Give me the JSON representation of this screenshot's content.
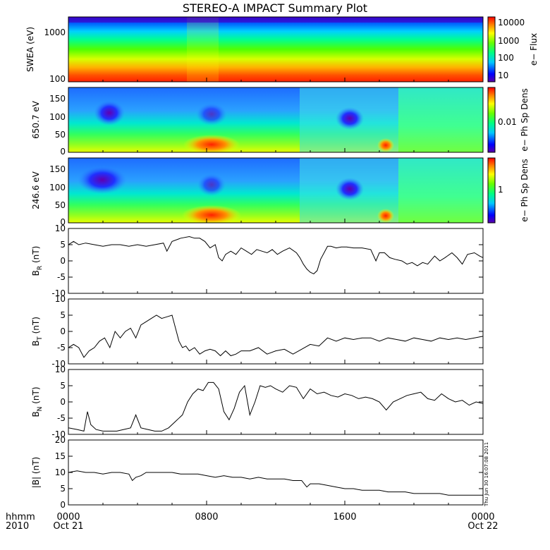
{
  "title": "STEREO-A IMPACT Summary Plot",
  "footer": {
    "hhmm_label": "hhmm",
    "year_label": "2010",
    "date_start": "Oct 21",
    "date_end": "Oct 22",
    "timestamp": "Thu Jun 30 16:07:08 2011"
  },
  "colors": {
    "trace": "#000000",
    "frame": "#000000"
  },
  "chart_data": [
    {
      "type": "heatmap",
      "ylabel": "SWEA (eV)",
      "yscale": "log",
      "ylim": [
        100,
        2000
      ],
      "yticks": [
        "1000",
        "100"
      ],
      "colorbar": {
        "label": "e− Flux",
        "scale": "log",
        "ticks": [
          "10000",
          "1000",
          "100",
          "10"
        ]
      },
      "xlim_hours": [
        0,
        24
      ],
      "xticks": [
        "0000",
        "0800",
        "1600",
        "0000"
      ]
    },
    {
      "type": "heatmap",
      "ylabel": "650.7 eV",
      "ylim": [
        0,
        180
      ],
      "yticks": [
        "150",
        "100",
        "50",
        "0"
      ],
      "colorbar": {
        "label": "e− Ph Sp Dens",
        "ticks": [
          "0.01"
        ]
      },
      "xlim_hours": [
        0,
        24
      ]
    },
    {
      "type": "heatmap",
      "ylabel": "246.6 eV",
      "ylim": [
        0,
        180
      ],
      "yticks": [
        "150",
        "100",
        "50",
        "0"
      ],
      "colorbar": {
        "label": "e− Ph Sp Dens",
        "ticks": [
          "1"
        ]
      },
      "xlim_hours": [
        0,
        24
      ]
    },
    {
      "type": "line",
      "ylabel": "B_R (nT)",
      "ylim": [
        -10,
        10
      ],
      "yticks": [
        "10",
        "5",
        "0",
        "-5",
        "-10"
      ],
      "series": [
        {
          "x": [
            0,
            0.3,
            0.6,
            1,
            1.5,
            2,
            2.5,
            3,
            3.5,
            4,
            4.5,
            5,
            5.5,
            5.7,
            6,
            6.5,
            7,
            7.3,
            7.6,
            7.9,
            8.2,
            8.5,
            8.7,
            8.9,
            9.1,
            9.4,
            9.7,
            10,
            10.3,
            10.6,
            10.9,
            11.2,
            11.5,
            11.8,
            12.1,
            12.4,
            12.8,
            13.2,
            13.4,
            13.6,
            13.8,
            14,
            14.2,
            14.4,
            14.6,
            14.8,
            15,
            15.2,
            15.5,
            15.8,
            16.1,
            16.5,
            17,
            17.5,
            17.8,
            18,
            18.3,
            18.6,
            18.9,
            19.3,
            19.6,
            19.9,
            20.2,
            20.5,
            20.8,
            21.2,
            21.5,
            21.8,
            22.2,
            22.5,
            22.8,
            23.1,
            23.5,
            23.8,
            24
          ],
          "y": [
            5,
            6,
            5,
            5.5,
            5,
            4.5,
            5,
            5,
            4.5,
            5,
            4.5,
            5,
            5.5,
            3,
            6,
            7,
            7.5,
            7,
            7,
            6,
            4,
            5,
            1,
            0,
            2,
            3,
            2,
            4,
            3,
            2,
            3.5,
            3,
            2.5,
            3.5,
            2,
            3,
            4,
            2.5,
            1,
            -1,
            -2.5,
            -3.5,
            -4,
            -3,
            0.5,
            2.5,
            4.5,
            4.5,
            4,
            4.3,
            4.3,
            4,
            4,
            3.5,
            0,
            2.5,
            2.5,
            1,
            0.5,
            0,
            -1,
            -0.5,
            -1.5,
            -0.5,
            -1,
            1.5,
            0,
            1,
            2.5,
            1,
            -1,
            2,
            2.5,
            1.5,
            1
          ]
        }
      ]
    },
    {
      "type": "line",
      "ylabel": "B_T (nT)",
      "ylim": [
        -10,
        10
      ],
      "yticks": [
        "10",
        "5",
        "0",
        "-5",
        "-10"
      ],
      "series": [
        {
          "x": [
            0,
            0.3,
            0.6,
            0.9,
            1.2,
            1.5,
            1.8,
            2.1,
            2.4,
            2.7,
            3,
            3.3,
            3.6,
            3.9,
            4.2,
            4.5,
            4.8,
            5.1,
            5.4,
            5.7,
            6,
            6.2,
            6.4,
            6.6,
            6.8,
            7,
            7.3,
            7.6,
            7.9,
            8.2,
            8.5,
            8.8,
            9.1,
            9.4,
            9.7,
            10,
            10.5,
            11,
            11.5,
            12,
            12.5,
            13,
            13.5,
            14,
            14.5,
            15,
            15.5,
            16,
            16.5,
            17,
            17.5,
            18,
            18.5,
            19,
            19.5,
            20,
            20.5,
            21,
            21.5,
            22,
            22.5,
            23,
            23.5,
            24
          ],
          "y": [
            -5,
            -4,
            -5,
            -8,
            -6,
            -5,
            -3,
            -2,
            -5,
            0,
            -2,
            0,
            1,
            -2,
            2,
            3,
            4,
            5,
            4,
            4.5,
            5,
            1,
            -3,
            -5,
            -4.5,
            -6,
            -5,
            -7,
            -6,
            -5.5,
            -6,
            -7.5,
            -6,
            -7.5,
            -7,
            -6,
            -6,
            -5,
            -7,
            -6,
            -5.5,
            -7,
            -5.5,
            -4,
            -4.5,
            -2,
            -3,
            -2,
            -2.5,
            -2,
            -2,
            -3,
            -2,
            -2.5,
            -3,
            -2,
            -2.5,
            -3,
            -2,
            -2.5,
            -2,
            -2.5,
            -2,
            -1.5
          ]
        }
      ]
    },
    {
      "type": "line",
      "ylabel": "B_N (nT)",
      "ylim": [
        -10,
        10
      ],
      "yticks": [
        "10",
        "5",
        "0",
        "-5",
        "-10"
      ],
      "series": [
        {
          "x": [
            0,
            0.5,
            0.9,
            1.1,
            1.3,
            1.6,
            2,
            2.4,
            2.8,
            3.2,
            3.6,
            3.9,
            4.2,
            4.6,
            5,
            5.4,
            5.8,
            6.2,
            6.6,
            6.9,
            7.2,
            7.5,
            7.8,
            8.1,
            8.4,
            8.7,
            9,
            9.3,
            9.6,
            9.9,
            10.2,
            10.5,
            10.8,
            11.1,
            11.4,
            11.7,
            12,
            12.4,
            12.8,
            13.2,
            13.6,
            14,
            14.4,
            14.8,
            15.2,
            15.6,
            16,
            16.4,
            16.8,
            17.2,
            17.6,
            18,
            18.4,
            18.8,
            19.2,
            19.6,
            20,
            20.4,
            20.8,
            21.2,
            21.6,
            22,
            22.4,
            22.8,
            23.2,
            23.6,
            24
          ],
          "y": [
            -8,
            -8.5,
            -9,
            -3,
            -7,
            -8.5,
            -9,
            -9,
            -9,
            -8.5,
            -8,
            -4,
            -8,
            -8.5,
            -9,
            -9,
            -8,
            -6,
            -4,
            0,
            2.5,
            4,
            3.5,
            6,
            6,
            4,
            -3,
            -5.5,
            -2,
            3,
            5,
            -4,
            0,
            5,
            4.5,
            5,
            4,
            3,
            5,
            4.5,
            1,
            4,
            2.5,
            3,
            2,
            1.5,
            2.5,
            2,
            1,
            1.5,
            1,
            0,
            -2.5,
            0,
            1,
            2,
            2.5,
            3,
            1,
            0.5,
            2.5,
            1,
            0,
            0.5,
            -1,
            0,
            -0.5
          ]
        }
      ]
    },
    {
      "type": "line",
      "ylabel": "|B| (nT)",
      "ylim": [
        0,
        20
      ],
      "yticks": [
        "20",
        "15",
        "10",
        "5",
        "0"
      ],
      "series": [
        {
          "x": [
            0,
            0.5,
            1,
            1.5,
            2,
            2.5,
            3,
            3.5,
            3.7,
            3.9,
            4.2,
            4.5,
            5,
            5.5,
            6,
            6.5,
            7,
            7.5,
            8,
            8.5,
            9,
            9.5,
            10,
            10.5,
            11,
            11.5,
            12,
            12.5,
            13,
            13.5,
            13.8,
            14,
            14.5,
            15,
            15.5,
            16,
            16.5,
            17,
            17.5,
            18,
            18.5,
            19,
            19.5,
            20,
            20.5,
            21,
            21.5,
            22,
            22.5,
            23,
            23.5,
            24
          ],
          "y": [
            10,
            10.5,
            10,
            10,
            9.5,
            10,
            10,
            9.5,
            7.5,
            8.5,
            9,
            10,
            10,
            10,
            10,
            9.5,
            9.5,
            9.5,
            9,
            8.5,
            9,
            8.5,
            8.5,
            8,
            8.5,
            8,
            8,
            8,
            7.5,
            7.5,
            5.5,
            6.5,
            6.5,
            6,
            5.5,
            5,
            5,
            4.5,
            4.5,
            4.5,
            4,
            4,
            4,
            3.5,
            3.5,
            3.5,
            3.5,
            3,
            3,
            3,
            3,
            3
          ]
        }
      ]
    }
  ]
}
